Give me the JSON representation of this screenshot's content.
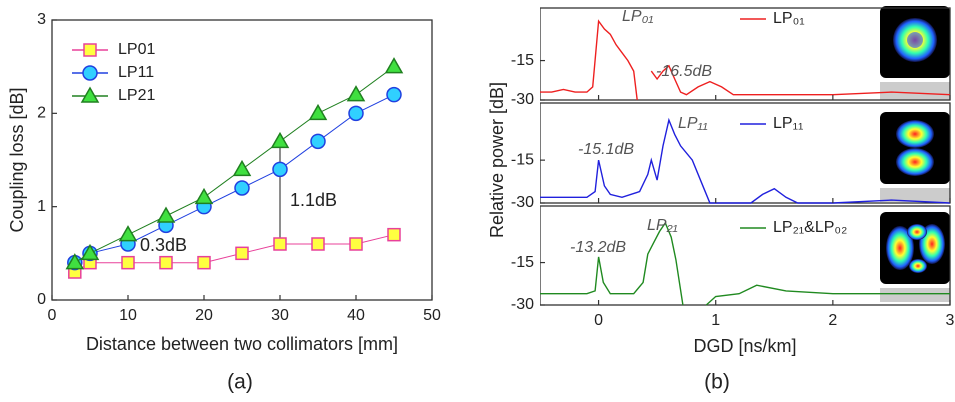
{
  "chart_data": [
    {
      "type": "line",
      "xlabel": "Distance between two collimators [mm]",
      "ylabel": "Coupling loss [dB]",
      "panel_label": "(a)",
      "x": [
        3,
        5,
        10,
        15,
        20,
        25,
        30,
        35,
        40,
        45
      ],
      "xlim": [
        0,
        50
      ],
      "xticks": [
        0,
        10,
        20,
        30,
        40,
        50
      ],
      "ylim": [
        0,
        3
      ],
      "yticks": [
        0,
        1,
        2,
        3
      ],
      "series": [
        {
          "name": "LP01",
          "color": "#e8409a",
          "marker": "square",
          "marker_fill": "#ffff40",
          "values": [
            0.3,
            0.4,
            0.4,
            0.4,
            0.4,
            0.5,
            0.6,
            0.6,
            0.6,
            0.7
          ]
        },
        {
          "name": "LP11",
          "color": "#2040e0",
          "marker": "circle",
          "marker_fill": "#30d0ff",
          "values": [
            0.4,
            0.5,
            0.6,
            0.8,
            1.0,
            1.2,
            1.4,
            1.7,
            2.0,
            2.2
          ]
        },
        {
          "name": "LP21",
          "color": "#208020",
          "marker": "triangle",
          "marker_fill": "#40e040",
          "values": [
            0.4,
            0.5,
            0.7,
            0.9,
            1.1,
            1.4,
            1.7,
            2.0,
            2.2,
            2.5
          ]
        }
      ],
      "annotations": [
        "0.3dB",
        "1.1dB"
      ]
    },
    {
      "type": "line",
      "ylabel": "Relative power [dB]",
      "panel_label": "(b)",
      "x": [
        -0.5,
        -0.4,
        -0.3,
        -0.2,
        -0.1,
        -0.05,
        0,
        0.05,
        0.1,
        0.15,
        0.2,
        0.25,
        0.3,
        0.33,
        0.4,
        0.45,
        0.5,
        0.55,
        0.6,
        0.65,
        0.7,
        0.75,
        0.85,
        0.95,
        1.05,
        1.15,
        1.5,
        2,
        2.5,
        3
      ],
      "xlim": [
        -0.5,
        3
      ],
      "ylim": [
        -30,
        5
      ],
      "yticks": [
        -30,
        -15
      ],
      "series": [
        {
          "name": "LP₀₁",
          "color": "#ee2020",
          "values": [
            -27,
            -27,
            -26,
            -27,
            -27,
            -25,
            0,
            -3,
            -5,
            -9,
            -12,
            -15,
            -19,
            -30,
            null,
            -19,
            -22,
            -19,
            -17,
            -22,
            -27,
            -28,
            -25,
            -23,
            -25,
            -28,
            -28,
            -28,
            -27,
            -28
          ]
        }
      ],
      "annotations": [
        "LP₀₁",
        "-16.5dB"
      ]
    },
    {
      "type": "line",
      "x": [
        -0.5,
        -0.3,
        -0.1,
        -0.03,
        0,
        0.05,
        0.1,
        0.2,
        0.35,
        0.42,
        0.45,
        0.5,
        0.55,
        0.6,
        0.65,
        0.7,
        0.8,
        0.9,
        0.95,
        1.3,
        1.4,
        1.5,
        1.6,
        1.7,
        2,
        2.5,
        3
      ],
      "xlim": [
        -0.5,
        3
      ],
      "ylim": [
        -30,
        5
      ],
      "yticks": [
        -30,
        -15
      ],
      "series": [
        {
          "name": "LP₁₁",
          "color": "#2020dd",
          "values": [
            -28,
            -28,
            -28,
            -26,
            -15,
            -24,
            -27,
            -28,
            -26,
            -20,
            -15,
            -22,
            -10,
            -1,
            -6,
            -10,
            -15,
            -25,
            -30,
            -30,
            -27,
            -25,
            -28,
            -30,
            -30,
            -29,
            -30
          ]
        }
      ],
      "annotations": [
        "LP₁₁",
        "-15.1dB"
      ]
    },
    {
      "type": "line",
      "xlabel": "DGD [ns/km]",
      "x": [
        -0.5,
        -0.3,
        -0.1,
        -0.03,
        0,
        0.04,
        0.1,
        0.3,
        0.38,
        0.42,
        0.47,
        0.52,
        0.57,
        0.62,
        0.66,
        0.72,
        0.8,
        0.92,
        1,
        1.2,
        1.35,
        1.6,
        2,
        2.5,
        3
      ],
      "xlim": [
        -0.5,
        3
      ],
      "xticks": [
        0,
        1,
        2,
        3
      ],
      "ylim": [
        -30,
        5
      ],
      "yticks": [
        -30,
        -15
      ],
      "series": [
        {
          "name": "LP₂₁&LP₀₂",
          "color": "#208a20",
          "values": [
            -26,
            -26,
            -26,
            -25,
            -13,
            -22,
            -26,
            -26,
            -22,
            -12,
            -8,
            -4,
            -1,
            -6,
            -14,
            -30,
            null,
            -30,
            -27,
            -26,
            -23,
            -25,
            -26,
            -26,
            -26
          ]
        }
      ],
      "annotations": [
        "LP₂₁",
        "-13.2dB"
      ]
    }
  ]
}
